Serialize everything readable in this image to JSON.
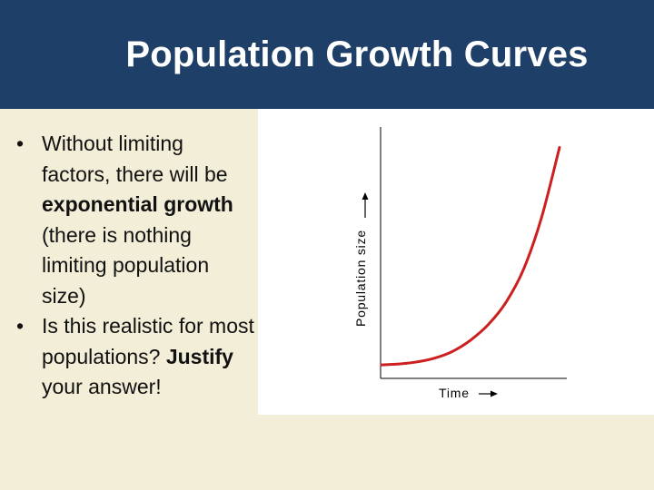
{
  "slide": {
    "title": "Population Growth Curves",
    "bullets": [
      {
        "segments": [
          {
            "text": "Without limiting factors, there will be ",
            "bold": false
          },
          {
            "text": "exponential growth",
            "bold": true
          },
          {
            "text": " (there is nothing limiting population size)",
            "bold": false
          }
        ]
      },
      {
        "segments": [
          {
            "text": "Is this realistic for most populations? ",
            "bold": false
          },
          {
            "text": "Justify",
            "bold": true
          },
          {
            "text": " your answer!",
            "bold": false
          }
        ]
      }
    ]
  },
  "chart_data": {
    "type": "line",
    "title": "",
    "xlabel": "Time",
    "ylabel": "Population size",
    "grid": false,
    "series": [
      {
        "color": "#cc1f1f",
        "x": [
          0,
          0.1,
          0.2,
          0.3,
          0.4,
          0.5,
          0.6,
          0.7,
          0.8,
          0.9,
          1.0
        ],
        "y": [
          0.02,
          0.024,
          0.033,
          0.05,
          0.08,
          0.13,
          0.2,
          0.3,
          0.45,
          0.68,
          0.99
        ]
      }
    ],
    "xlim": [
      0,
      1
    ],
    "ylim": [
      0,
      1
    ]
  },
  "colors": {
    "header": "#1e3f68",
    "background": "#f3eed7",
    "curve": "#cc1f1f"
  }
}
